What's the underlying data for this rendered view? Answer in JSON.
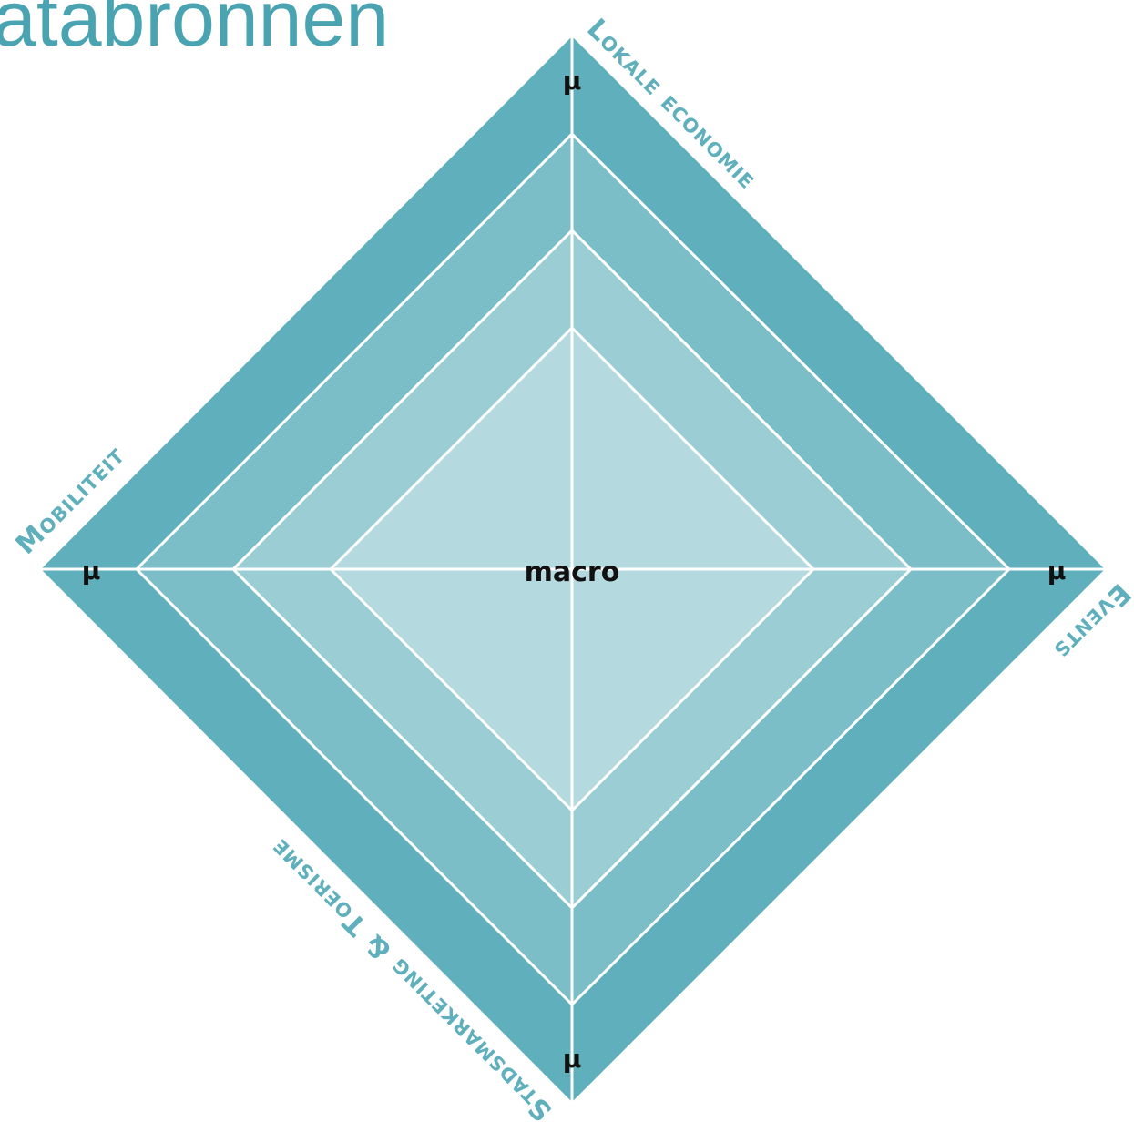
{
  "header": {
    "title": "atabronnen"
  },
  "axes": [
    {
      "label": "Lokale economie",
      "marker": "µ"
    },
    {
      "label": "Events",
      "marker": "µ"
    },
    {
      "label": "Stadsmarketing & Toerisme",
      "marker": "µ"
    },
    {
      "label": "Mobiliteit",
      "marker": "µ"
    }
  ],
  "center": {
    "label": "macro"
  }
}
